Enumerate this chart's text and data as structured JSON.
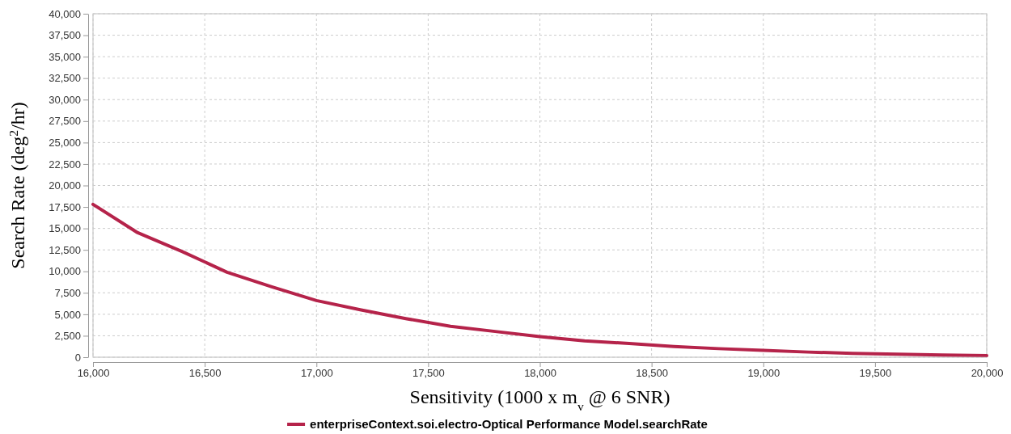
{
  "chart_data": {
    "type": "line",
    "xlabel": "Sensitivity (1000 x m$_{v}$ @ 6 SNR)",
    "ylabel": "Search Rate (deg$^{2}$/hr)",
    "x": [
      16000,
      16200,
      16400,
      16600,
      16800,
      17000,
      17200,
      17400,
      17600,
      17800,
      18000,
      18200,
      18400,
      18600,
      18800,
      19000,
      19200,
      19400,
      19600,
      19800,
      20000
    ],
    "series": [
      {
        "name": "enterpriseContext.soi.electro-Optical Performance Model.searchRate",
        "color": "#b5234a",
        "values": [
          17800,
          14500,
          12300,
          9900,
          8200,
          6600,
          5500,
          4500,
          3600,
          3000,
          2400,
          1900,
          1600,
          1250,
          1000,
          800,
          600,
          450,
          350,
          250,
          200
        ]
      }
    ],
    "xlim": [
      16000,
      20000
    ],
    "ylim": [
      0,
      40000
    ],
    "xticks": [
      {
        "value": 16000,
        "label": "16,000"
      },
      {
        "value": 16500,
        "label": "16,500"
      },
      {
        "value": 17000,
        "label": "17,000"
      },
      {
        "value": 17500,
        "label": "17,500"
      },
      {
        "value": 18000,
        "label": "18,000"
      },
      {
        "value": 18500,
        "label": "18,500"
      },
      {
        "value": 19000,
        "label": "19,000"
      },
      {
        "value": 19500,
        "label": "19,500"
      },
      {
        "value": 20000,
        "label": "20,000"
      }
    ],
    "yticks": [
      0,
      {
        "value": 2500,
        "label": "2,500"
      },
      {
        "value": 5000,
        "label": "5,000"
      },
      {
        "value": 7500,
        "label": "7,500"
      },
      {
        "value": 10000,
        "label": "10,000"
      },
      {
        "value": 12500,
        "label": "12,500"
      },
      {
        "value": 15000,
        "label": "15,000"
      },
      {
        "value": 17500,
        "label": "17,500"
      },
      {
        "value": 20000,
        "label": "20,000"
      },
      {
        "value": 22500,
        "label": "22,500"
      },
      {
        "value": 25000,
        "label": "25,000"
      },
      {
        "value": 27500,
        "label": "27,500"
      },
      {
        "value": 30000,
        "label": "30,000"
      },
      {
        "value": 32500,
        "label": "32,500"
      },
      {
        "value": 35000,
        "label": "35,000"
      },
      {
        "value": 37500,
        "label": "37,500"
      },
      {
        "value": 40000,
        "label": "40,000"
      }
    ],
    "grid": true,
    "legend": "bottom",
    "marker": "none",
    "line_style": "solid"
  }
}
